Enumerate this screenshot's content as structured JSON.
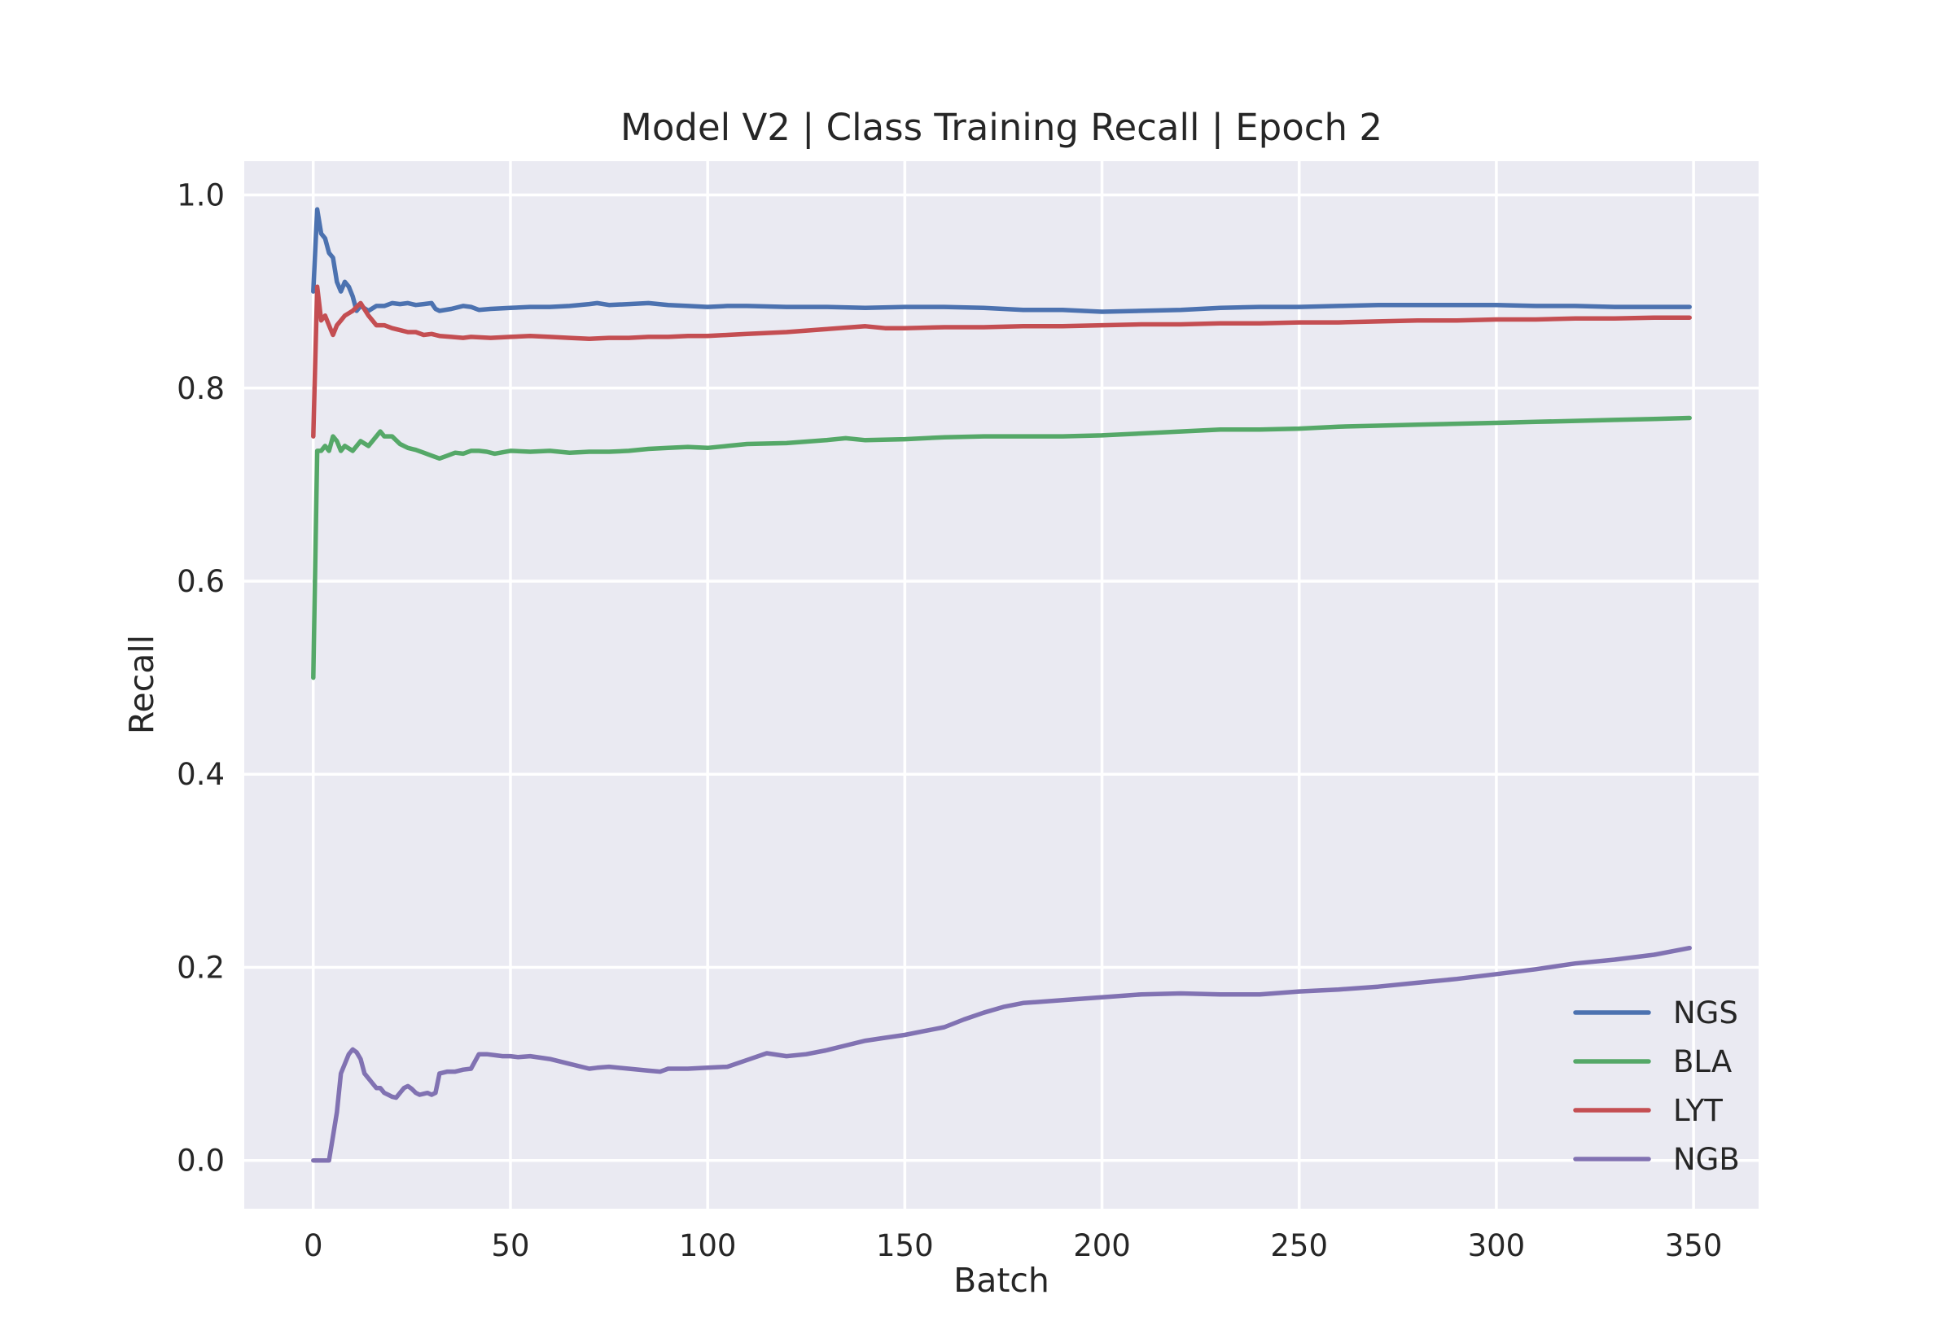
{
  "chart_data": {
    "type": "line",
    "title": "Model V2 | Class Training Recall | Epoch 2",
    "xlabel": "Batch",
    "ylabel": "Recall",
    "xlim": [
      -17.5,
      366.5
    ],
    "ylim": [
      -0.05,
      1.035
    ],
    "xticks": [
      0,
      50,
      100,
      150,
      200,
      250,
      300,
      350
    ],
    "yticks": [
      0.0,
      0.2,
      0.4,
      0.6,
      0.8,
      1.0
    ],
    "xtick_labels": [
      "0",
      "50",
      "100",
      "150",
      "200",
      "250",
      "300",
      "350"
    ],
    "ytick_labels": [
      "0.0",
      "0.2",
      "0.4",
      "0.6",
      "0.8",
      "1.0"
    ],
    "grid": true,
    "legend_position": "lower-right",
    "background": "#eaeaf2",
    "series": [
      {
        "name": "NGS",
        "color": "#4c72b0",
        "x": [
          0,
          1,
          2,
          3,
          4,
          5,
          6,
          7,
          8,
          9,
          10,
          11,
          12,
          14,
          16,
          18,
          20,
          22,
          24,
          26,
          28,
          30,
          31,
          32,
          35,
          38,
          40,
          42,
          45,
          50,
          55,
          60,
          65,
          70,
          72,
          75,
          80,
          85,
          90,
          95,
          100,
          105,
          110,
          120,
          130,
          140,
          150,
          160,
          170,
          180,
          190,
          200,
          210,
          220,
          230,
          240,
          250,
          260,
          270,
          280,
          290,
          300,
          310,
          320,
          330,
          340,
          349
        ],
        "y": [
          0.9,
          0.985,
          0.96,
          0.955,
          0.94,
          0.935,
          0.91,
          0.9,
          0.91,
          0.905,
          0.895,
          0.88,
          0.885,
          0.88,
          0.885,
          0.885,
          0.888,
          0.887,
          0.888,
          0.886,
          0.887,
          0.888,
          0.882,
          0.88,
          0.882,
          0.885,
          0.884,
          0.881,
          0.882,
          0.883,
          0.884,
          0.884,
          0.885,
          0.887,
          0.888,
          0.886,
          0.887,
          0.888,
          0.886,
          0.885,
          0.884,
          0.885,
          0.885,
          0.884,
          0.884,
          0.883,
          0.884,
          0.884,
          0.883,
          0.881,
          0.881,
          0.879,
          0.88,
          0.881,
          0.883,
          0.884,
          0.884,
          0.885,
          0.886,
          0.886,
          0.886,
          0.886,
          0.885,
          0.885,
          0.884,
          0.884,
          0.884
        ]
      },
      {
        "name": "BLA",
        "color": "#55a868",
        "x": [
          0,
          1,
          2,
          3,
          4,
          5,
          6,
          7,
          8,
          10,
          12,
          14,
          17,
          18,
          20,
          22,
          24,
          26,
          28,
          30,
          32,
          34,
          36,
          38,
          40,
          42,
          44,
          46,
          50,
          55,
          60,
          65,
          70,
          75,
          80,
          85,
          90,
          95,
          100,
          105,
          110,
          120,
          130,
          135,
          140,
          150,
          160,
          170,
          180,
          190,
          200,
          210,
          220,
          230,
          240,
          250,
          260,
          270,
          280,
          290,
          300,
          310,
          320,
          330,
          340,
          349
        ],
        "y": [
          0.5,
          0.735,
          0.735,
          0.74,
          0.735,
          0.75,
          0.745,
          0.735,
          0.74,
          0.735,
          0.745,
          0.74,
          0.755,
          0.75,
          0.75,
          0.742,
          0.738,
          0.736,
          0.733,
          0.73,
          0.727,
          0.73,
          0.733,
          0.732,
          0.735,
          0.735,
          0.734,
          0.732,
          0.735,
          0.734,
          0.735,
          0.733,
          0.734,
          0.734,
          0.735,
          0.737,
          0.738,
          0.739,
          0.738,
          0.74,
          0.742,
          0.743,
          0.746,
          0.748,
          0.746,
          0.747,
          0.749,
          0.75,
          0.75,
          0.75,
          0.751,
          0.753,
          0.755,
          0.757,
          0.757,
          0.758,
          0.76,
          0.761,
          0.762,
          0.763,
          0.764,
          0.765,
          0.766,
          0.767,
          0.768,
          0.769
        ]
      },
      {
        "name": "LYT",
        "color": "#c44e52",
        "x": [
          0,
          1,
          2,
          3,
          4,
          5,
          6,
          7,
          8,
          10,
          12,
          14,
          16,
          18,
          20,
          22,
          24,
          26,
          28,
          30,
          32,
          35,
          38,
          40,
          45,
          50,
          55,
          60,
          65,
          70,
          75,
          80,
          85,
          90,
          95,
          100,
          105,
          110,
          120,
          130,
          140,
          145,
          150,
          160,
          170,
          180,
          190,
          200,
          210,
          220,
          230,
          240,
          250,
          260,
          270,
          280,
          290,
          300,
          310,
          320,
          330,
          340,
          349
        ],
        "y": [
          0.75,
          0.905,
          0.87,
          0.875,
          0.865,
          0.855,
          0.865,
          0.87,
          0.875,
          0.88,
          0.888,
          0.875,
          0.865,
          0.865,
          0.862,
          0.86,
          0.858,
          0.858,
          0.855,
          0.856,
          0.854,
          0.853,
          0.852,
          0.853,
          0.852,
          0.853,
          0.854,
          0.853,
          0.852,
          0.851,
          0.852,
          0.852,
          0.853,
          0.853,
          0.854,
          0.854,
          0.855,
          0.856,
          0.858,
          0.861,
          0.864,
          0.862,
          0.862,
          0.863,
          0.863,
          0.864,
          0.864,
          0.865,
          0.866,
          0.866,
          0.867,
          0.867,
          0.868,
          0.868,
          0.869,
          0.87,
          0.87,
          0.871,
          0.871,
          0.872,
          0.872,
          0.873,
          0.873
        ]
      },
      {
        "name": "NGB",
        "color": "#8172b2",
        "x": [
          0,
          1,
          2,
          3,
          4,
          5,
          6,
          7,
          8,
          9,
          10,
          11,
          12,
          13,
          14,
          15,
          16,
          17,
          18,
          19,
          20,
          21,
          22,
          23,
          24,
          25,
          26,
          27,
          28,
          29,
          30,
          31,
          32,
          34,
          36,
          38,
          40,
          42,
          44,
          46,
          48,
          50,
          52,
          55,
          60,
          65,
          70,
          72,
          75,
          80,
          85,
          88,
          90,
          95,
          100,
          105,
          110,
          115,
          120,
          125,
          130,
          135,
          140,
          145,
          150,
          155,
          160,
          165,
          170,
          175,
          180,
          190,
          200,
          210,
          220,
          230,
          240,
          250,
          260,
          270,
          280,
          290,
          300,
          310,
          320,
          330,
          340,
          349
        ],
        "y": [
          0.0,
          0.0,
          0.0,
          0.0,
          0.0,
          0.025,
          0.05,
          0.09,
          0.1,
          0.11,
          0.115,
          0.112,
          0.105,
          0.09,
          0.085,
          0.08,
          0.075,
          0.075,
          0.07,
          0.068,
          0.066,
          0.065,
          0.07,
          0.075,
          0.077,
          0.074,
          0.07,
          0.068,
          0.069,
          0.07,
          0.068,
          0.07,
          0.09,
          0.092,
          0.092,
          0.094,
          0.095,
          0.11,
          0.11,
          0.109,
          0.108,
          0.108,
          0.107,
          0.108,
          0.105,
          0.1,
          0.095,
          0.096,
          0.097,
          0.095,
          0.093,
          0.092,
          0.095,
          0.095,
          0.096,
          0.097,
          0.104,
          0.111,
          0.108,
          0.11,
          0.114,
          0.119,
          0.124,
          0.127,
          0.13,
          0.134,
          0.138,
          0.146,
          0.153,
          0.159,
          0.163,
          0.166,
          0.169,
          0.172,
          0.173,
          0.172,
          0.172,
          0.175,
          0.177,
          0.18,
          0.184,
          0.188,
          0.193,
          0.198,
          0.204,
          0.208,
          0.213,
          0.22
        ]
      }
    ]
  }
}
